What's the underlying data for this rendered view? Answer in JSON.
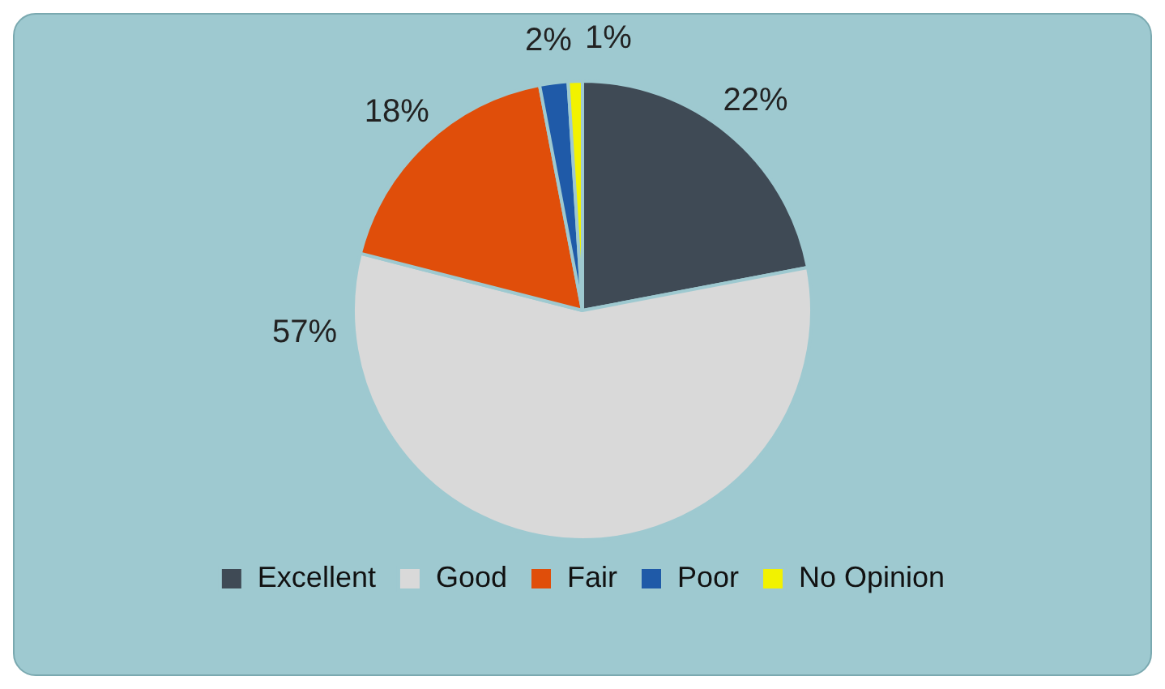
{
  "chart_data": {
    "type": "pie",
    "categories": [
      "Excellent",
      "Good",
      "Fair",
      "Poor",
      "No Opinion"
    ],
    "values": [
      22,
      57,
      18,
      2,
      1
    ],
    "colors": [
      "#3f4a55",
      "#d9d9d9",
      "#e04e0a",
      "#1f5aa8",
      "#f2f200"
    ],
    "value_labels": [
      "22%",
      "57%",
      "18%",
      "2%",
      "1%"
    ],
    "legend": "bottom"
  }
}
